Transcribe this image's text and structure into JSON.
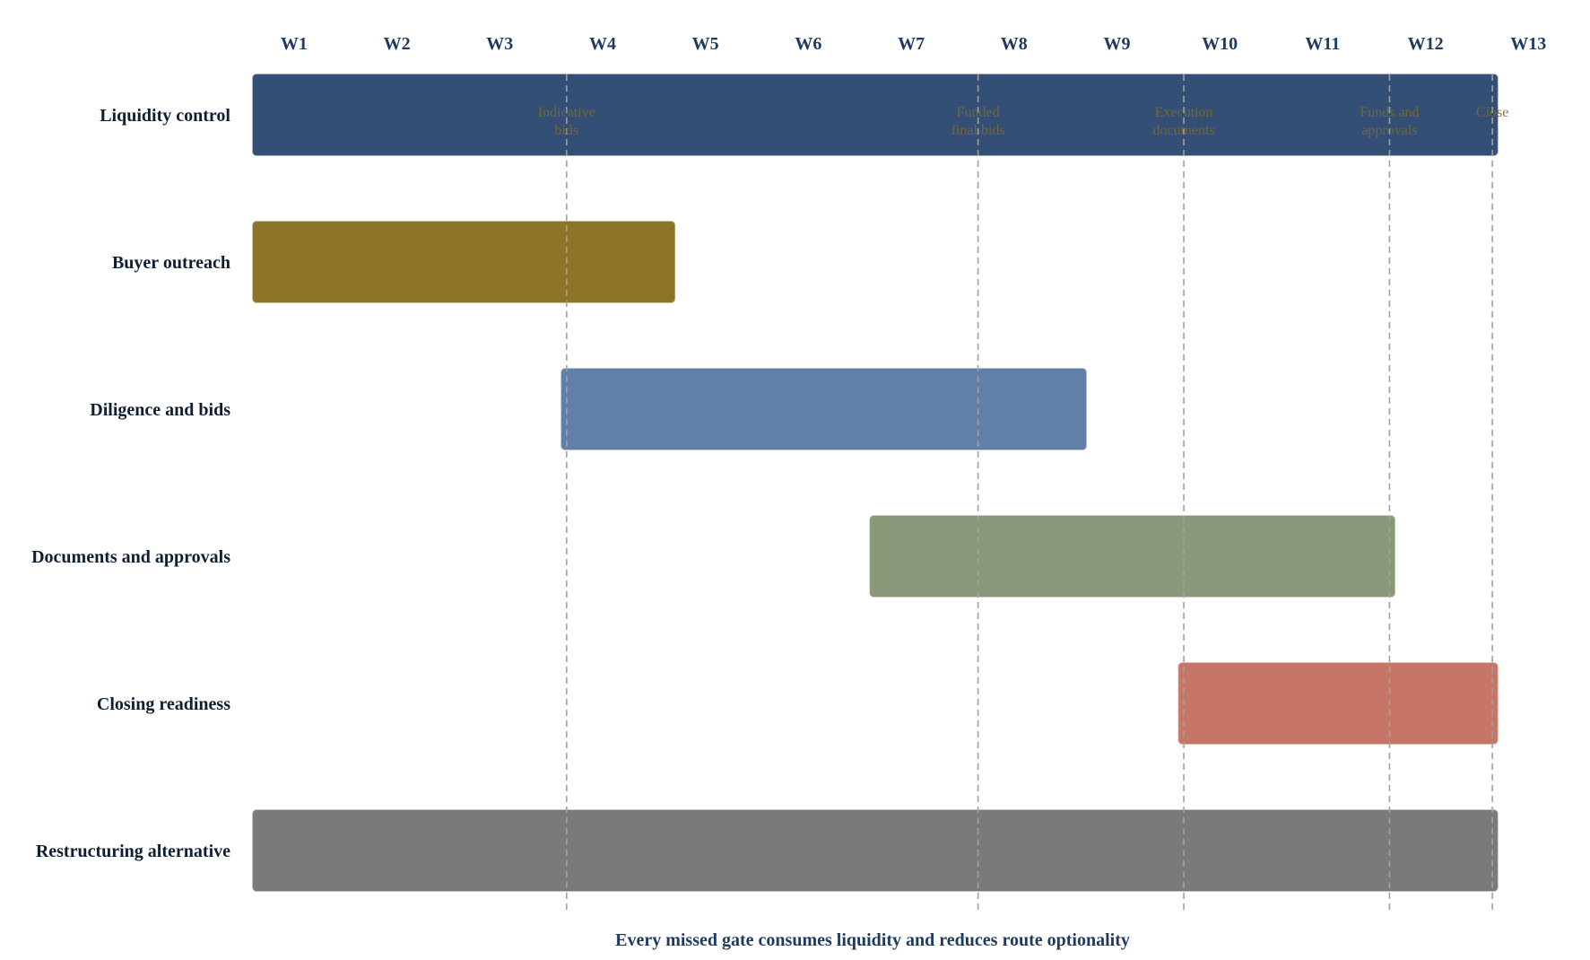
{
  "chart_data": {
    "type": "gantt",
    "x_unit": "week",
    "weeks": [
      "W1",
      "W2",
      "W3",
      "W4",
      "W5",
      "W6",
      "W7",
      "W8",
      "W9",
      "W10",
      "W11",
      "W12",
      "W13"
    ],
    "x_range": [
      0,
      13
    ],
    "tasks": [
      {
        "label": "Liquidity control",
        "start": 0.0,
        "end": 12.1,
        "color": "#334f75"
      },
      {
        "label": "Buyer outreach",
        "start": 0.0,
        "end": 4.1,
        "color": "#8e7426"
      },
      {
        "label": "Diligence and bids",
        "start": 3.0,
        "end": 8.1,
        "color": "#617fa8"
      },
      {
        "label": "Documents and approvals",
        "start": 6.0,
        "end": 11.1,
        "color": "#899879"
      },
      {
        "label": "Closing readiness",
        "start": 9.0,
        "end": 12.1,
        "color": "#c77567"
      },
      {
        "label": "Restructuring alternative",
        "start": 0.0,
        "end": 12.1,
        "color": "#7a7a7a"
      }
    ],
    "milestones": [
      {
        "x": 3.05,
        "lines": [
          "Indicative",
          "bids"
        ]
      },
      {
        "x": 7.05,
        "lines": [
          "Funded",
          "final bids"
        ]
      },
      {
        "x": 9.05,
        "lines": [
          "Execution",
          "documents"
        ]
      },
      {
        "x": 11.05,
        "lines": [
          "Funds and",
          "approvals"
        ]
      },
      {
        "x": 12.05,
        "lines": [
          "Close"
        ]
      }
    ],
    "caption": "Every missed gate consumes liquidity and reduces route optionality",
    "grid": false,
    "legend": "none"
  }
}
